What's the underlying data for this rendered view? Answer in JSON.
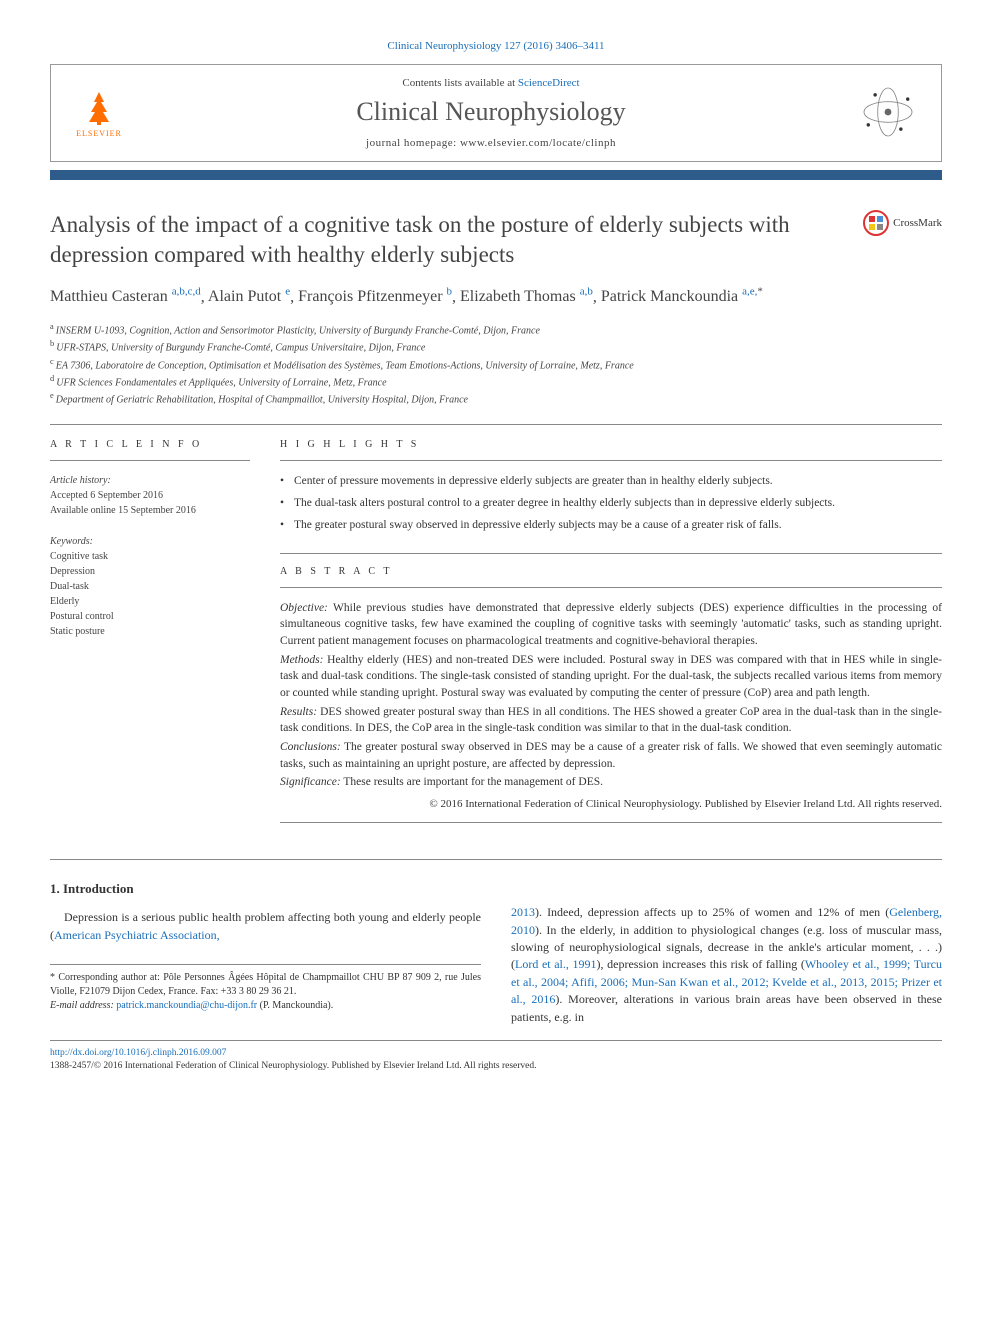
{
  "journal_ref": "Clinical Neurophysiology 127 (2016) 3406–3411",
  "header": {
    "contents_prefix": "Contents lists available at ",
    "contents_link": "ScienceDirect",
    "journal_name": "Clinical Neurophysiology",
    "homepage_prefix": "journal homepage: ",
    "homepage": "www.elsevier.com/locate/clinph",
    "publisher": "ELSEVIER"
  },
  "title": "Analysis of the impact of a cognitive task on the posture of elderly subjects with depression compared with healthy elderly subjects",
  "crossmark": "CrossMark",
  "authors": [
    {
      "name": "Matthieu Casteran",
      "aff": "a,b,c,d"
    },
    {
      "name": "Alain Putot",
      "aff": "e"
    },
    {
      "name": "François Pfitzenmeyer",
      "aff": "b"
    },
    {
      "name": "Elizabeth Thomas",
      "aff": "a,b"
    },
    {
      "name": "Patrick Manckoundia",
      "aff": "a,e,",
      "corr": true
    }
  ],
  "affiliations": [
    {
      "key": "a",
      "text": "INSERM U-1093, Cognition, Action and Sensorimotor Plasticity, University of Burgundy Franche-Comté, Dijon, France"
    },
    {
      "key": "b",
      "text": "UFR-STAPS, University of Burgundy Franche-Comté, Campus Universitaire, Dijon, France"
    },
    {
      "key": "c",
      "text": "EA 7306, Laboratoire de Conception, Optimisation et Modélisation des Systèmes, Team Emotions-Actions, University of Lorraine, Metz, France"
    },
    {
      "key": "d",
      "text": "UFR Sciences Fondamentales et Appliquées, University of Lorraine, Metz, France"
    },
    {
      "key": "e",
      "text": "Department of Geriatric Rehabilitation, Hospital of Champmaillot, University Hospital, Dijon, France"
    }
  ],
  "article_info": {
    "head": "A R T I C L E   I N F O",
    "history_label": "Article history:",
    "accepted": "Accepted 6 September 2016",
    "online": "Available online 15 September 2016",
    "keywords_label": "Keywords:",
    "keywords": [
      "Cognitive task",
      "Depression",
      "Dual-task",
      "Elderly",
      "Postural control",
      "Static posture"
    ]
  },
  "highlights": {
    "head": "H I G H L I G H T S",
    "items": [
      "Center of pressure movements in depressive elderly subjects are greater than in healthy elderly subjects.",
      "The dual-task alters postural control to a greater degree in healthy elderly subjects than in depressive elderly subjects.",
      "The greater postural sway observed in depressive elderly subjects may be a cause of a greater risk of falls."
    ]
  },
  "abstract": {
    "head": "A B S T R A C T",
    "objective_label": "Objective:",
    "objective": "While previous studies have demonstrated that depressive elderly subjects (DES) experience difficulties in the processing of simultaneous cognitive tasks, few have examined the coupling of cognitive tasks with seemingly 'automatic' tasks, such as standing upright. Current patient management focuses on pharmacological treatments and cognitive-behavioral therapies.",
    "methods_label": "Methods:",
    "methods": "Healthy elderly (HES) and non-treated DES were included. Postural sway in DES was compared with that in HES while in single-task and dual-task conditions. The single-task consisted of standing upright. For the dual-task, the subjects recalled various items from memory or counted while standing upright. Postural sway was evaluated by computing the center of pressure (CoP) area and path length.",
    "results_label": "Results:",
    "results": "DES showed greater postural sway than HES in all conditions. The HES showed a greater CoP area in the dual-task than in the single-task conditions. In DES, the CoP area in the single-task condition was similar to that in the dual-task condition.",
    "conclusions_label": "Conclusions:",
    "conclusions": "The greater postural sway observed in DES may be a cause of a greater risk of falls. We showed that even seemingly automatic tasks, such as maintaining an upright posture, are affected by depression.",
    "significance_label": "Significance:",
    "significance": "These results are important for the management of DES.",
    "copyright": "© 2016 International Federation of Clinical Neurophysiology. Published by Elsevier Ireland Ltd. All rights reserved."
  },
  "intro": {
    "head": "1. Introduction",
    "col1_a": "Depression is a serious public health problem affecting both young and elderly people (",
    "col1_link1": "American Psychiatric Association,",
    "col2_link1": "2013",
    "col2_a": "). Indeed, depression affects up to 25% of women and 12% of men (",
    "col2_link2": "Gelenberg, 2010",
    "col2_b": "). In the elderly, in addition to physiological changes (e.g. loss of muscular mass, slowing of neurophysiological signals, decrease in the ankle's articular moment, . . .) (",
    "col2_link3": "Lord et al., 1991",
    "col2_c": "), depression increases this risk of falling (",
    "col2_link4": "Whooley et al., 1999; Turcu et al., 2004; Afifi, 2006; Mun-San Kwan et al., 2012; Kvelde et al., 2013, 2015; Prizer et al., 2016",
    "col2_d": "). Moreover, alterations in various brain areas have been observed in these patients, e.g. in"
  },
  "corr": {
    "star": "*",
    "text1": "Corresponding author at: Pôle Personnes Âgées Hôpital de Champmaillot CHU BP 87 909 2, rue Jules Violle, F21079 Dijon Cedex, France. Fax: +33 3 80 29 36 21.",
    "email_label": "E-mail address:",
    "email": "patrick.manckoundia@chu-dijon.fr",
    "email_name": "(P. Manckoundia)."
  },
  "footer": {
    "doi": "http://dx.doi.org/10.1016/j.clinph.2016.09.007",
    "issn": "1388-2457/© 2016 International Federation of Clinical Neurophysiology. Published by Elsevier Ireland Ltd. All rights reserved."
  },
  "colors": {
    "link": "#1a6eb8",
    "accent_bar": "#2e5c8a",
    "elsevier_orange": "#ff6c00",
    "crossmark_ring": "#d33",
    "text": "#333333",
    "muted": "#444444",
    "rule": "#888888"
  }
}
